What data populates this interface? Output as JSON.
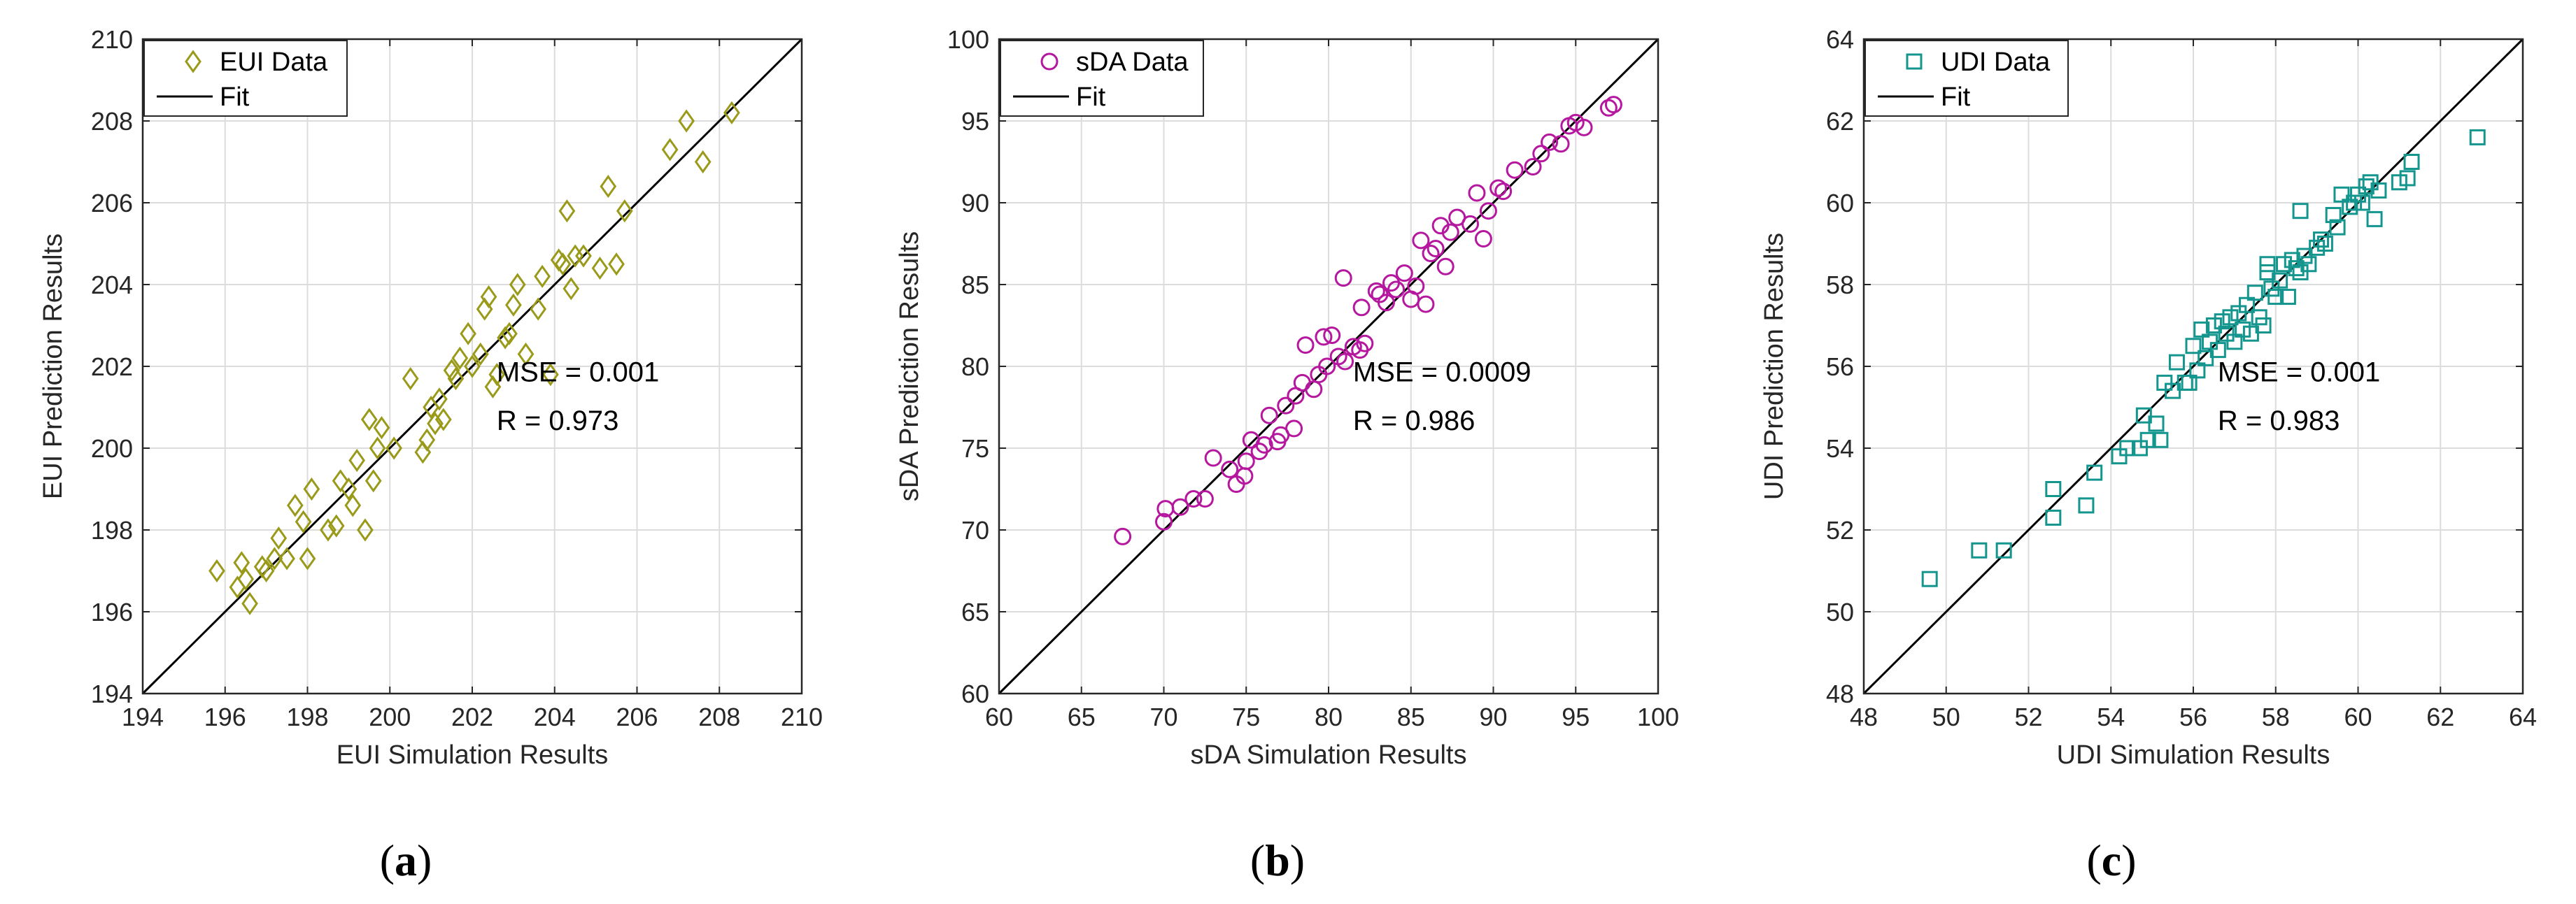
{
  "chart_data": [
    {
      "type": "scatter",
      "panel": "(a)",
      "panel_letter": "a",
      "xlabel": "EUI Simulation Results",
      "ylabel": "EUI Prediction Results",
      "xlim": [
        194,
        210
      ],
      "ylim": [
        194,
        210
      ],
      "xticks": [
        194,
        196,
        198,
        200,
        202,
        204,
        206,
        208,
        210
      ],
      "yticks": [
        194,
        196,
        198,
        200,
        202,
        204,
        206,
        208,
        210
      ],
      "grid": true,
      "marker": "diamond",
      "color": "#9a9a1a",
      "legend": {
        "data_label": "EUI Data",
        "fit_label": "Fit",
        "position": "top-left"
      },
      "annotations": {
        "mse": "MSE = 0.001",
        "r": "R = 0.973"
      },
      "fit": [
        [
          194,
          194
        ],
        [
          210,
          210
        ]
      ],
      "points": [
        [
          195.8,
          197.0
        ],
        [
          196.3,
          196.6
        ],
        [
          196.4,
          197.2
        ],
        [
          196.5,
          196.8
        ],
        [
          196.6,
          196.2
        ],
        [
          196.9,
          197.1
        ],
        [
          197.0,
          197.0
        ],
        [
          197.2,
          197.3
        ],
        [
          197.3,
          197.8
        ],
        [
          197.5,
          197.3
        ],
        [
          197.7,
          198.6
        ],
        [
          197.9,
          198.2
        ],
        [
          198.0,
          197.3
        ],
        [
          198.1,
          199.0
        ],
        [
          198.5,
          198.0
        ],
        [
          198.7,
          198.1
        ],
        [
          198.8,
          199.2
        ],
        [
          199.0,
          199.0
        ],
        [
          199.1,
          198.6
        ],
        [
          199.2,
          199.7
        ],
        [
          199.4,
          198.0
        ],
        [
          199.5,
          200.7
        ],
        [
          199.6,
          199.2
        ],
        [
          199.7,
          200.0
        ],
        [
          199.8,
          200.5
        ],
        [
          200.1,
          200.0
        ],
        [
          200.5,
          201.7
        ],
        [
          200.8,
          199.9
        ],
        [
          200.9,
          200.2
        ],
        [
          201.0,
          201.0
        ],
        [
          201.1,
          200.6
        ],
        [
          201.2,
          201.2
        ],
        [
          201.3,
          200.7
        ],
        [
          201.5,
          201.9
        ],
        [
          201.6,
          201.7
        ],
        [
          201.7,
          202.2
        ],
        [
          201.9,
          202.8
        ],
        [
          202.0,
          202.0
        ],
        [
          202.2,
          202.3
        ],
        [
          202.3,
          203.4
        ],
        [
          202.4,
          203.7
        ],
        [
          202.5,
          201.5
        ],
        [
          202.6,
          201.8
        ],
        [
          202.8,
          202.7
        ],
        [
          202.9,
          202.8
        ],
        [
          203.0,
          203.5
        ],
        [
          203.1,
          204.0
        ],
        [
          203.3,
          202.3
        ],
        [
          203.6,
          203.4
        ],
        [
          203.7,
          204.2
        ],
        [
          203.9,
          201.8
        ],
        [
          204.1,
          204.6
        ],
        [
          204.2,
          204.5
        ],
        [
          204.3,
          205.8
        ],
        [
          204.4,
          203.9
        ],
        [
          204.5,
          204.7
        ],
        [
          204.7,
          204.7
        ],
        [
          205.1,
          204.4
        ],
        [
          205.3,
          206.4
        ],
        [
          205.5,
          204.5
        ],
        [
          205.7,
          205.8
        ],
        [
          206.8,
          207.3
        ],
        [
          207.2,
          208.0
        ],
        [
          207.6,
          207.0
        ],
        [
          208.3,
          208.2
        ]
      ]
    },
    {
      "type": "scatter",
      "panel": "(b)",
      "panel_letter": "b",
      "xlabel": "sDA Simulation Results",
      "ylabel": "sDA Prediction Results",
      "xlim": [
        60,
        100
      ],
      "ylim": [
        60,
        100
      ],
      "xticks": [
        60,
        65,
        70,
        75,
        80,
        85,
        90,
        95,
        100
      ],
      "yticks": [
        60,
        65,
        70,
        75,
        80,
        85,
        90,
        95,
        100
      ],
      "grid": true,
      "marker": "circle",
      "color": "#b5179e",
      "legend": {
        "data_label": "sDA Data",
        "fit_label": "Fit",
        "position": "top-left"
      },
      "annotations": {
        "mse": "MSE = 0.0009",
        "r": "R = 0.986"
      },
      "fit": [
        [
          60,
          60
        ],
        [
          100,
          100
        ]
      ],
      "points": [
        [
          67.5,
          69.6
        ],
        [
          70.0,
          70.5
        ],
        [
          70.1,
          71.3
        ],
        [
          71.0,
          71.4
        ],
        [
          71.8,
          71.9
        ],
        [
          72.5,
          71.9
        ],
        [
          73.0,
          74.4
        ],
        [
          74.0,
          73.7
        ],
        [
          74.4,
          72.8
        ],
        [
          74.9,
          73.3
        ],
        [
          75.0,
          74.2
        ],
        [
          75.3,
          75.5
        ],
        [
          75.8,
          74.8
        ],
        [
          76.1,
          75.2
        ],
        [
          76.4,
          77.0
        ],
        [
          76.9,
          75.4
        ],
        [
          77.1,
          75.8
        ],
        [
          77.4,
          77.6
        ],
        [
          77.9,
          76.2
        ],
        [
          78.0,
          78.2
        ],
        [
          78.4,
          79.0
        ],
        [
          78.6,
          81.3
        ],
        [
          79.1,
          78.6
        ],
        [
          79.4,
          79.5
        ],
        [
          79.7,
          81.8
        ],
        [
          79.9,
          80.0
        ],
        [
          80.2,
          81.9
        ],
        [
          80.6,
          80.6
        ],
        [
          80.9,
          85.4
        ],
        [
          81.0,
          80.3
        ],
        [
          81.5,
          81.2
        ],
        [
          81.9,
          81.0
        ],
        [
          82.0,
          83.6
        ],
        [
          82.2,
          81.4
        ],
        [
          82.9,
          84.6
        ],
        [
          83.1,
          84.4
        ],
        [
          83.5,
          83.9
        ],
        [
          83.8,
          85.1
        ],
        [
          84.1,
          84.7
        ],
        [
          84.6,
          85.7
        ],
        [
          85.0,
          84.1
        ],
        [
          85.3,
          84.9
        ],
        [
          85.6,
          87.7
        ],
        [
          85.9,
          83.8
        ],
        [
          86.2,
          86.9
        ],
        [
          86.5,
          87.2
        ],
        [
          86.8,
          88.6
        ],
        [
          87.1,
          86.1
        ],
        [
          87.4,
          88.2
        ],
        [
          87.8,
          89.1
        ],
        [
          88.6,
          88.7
        ],
        [
          89.0,
          90.6
        ],
        [
          89.4,
          87.8
        ],
        [
          89.7,
          89.5
        ],
        [
          90.3,
          90.9
        ],
        [
          90.6,
          90.7
        ],
        [
          91.3,
          92.0
        ],
        [
          92.4,
          92.2
        ],
        [
          92.9,
          93.0
        ],
        [
          93.4,
          93.7
        ],
        [
          94.1,
          93.6
        ],
        [
          94.6,
          94.7
        ],
        [
          95.0,
          94.9
        ],
        [
          95.5,
          94.6
        ],
        [
          97.0,
          95.8
        ],
        [
          97.3,
          96.0
        ]
      ]
    },
    {
      "type": "scatter",
      "panel": "(c)",
      "panel_letter": "c",
      "xlabel": "UDI Simulation Results",
      "ylabel": "UDI Prediction Results",
      "xlim": [
        48,
        64
      ],
      "ylim": [
        48,
        64
      ],
      "xticks": [
        48,
        50,
        52,
        54,
        56,
        58,
        60,
        62,
        64
      ],
      "yticks": [
        48,
        50,
        52,
        54,
        56,
        58,
        60,
        62,
        64
      ],
      "grid": true,
      "marker": "square",
      "color": "#14968f",
      "legend": {
        "data_label": "UDI Data",
        "fit_label": "Fit",
        "position": "top-left"
      },
      "annotations": {
        "mse": "MSE = 0.001",
        "r": "R = 0.983"
      },
      "fit": [
        [
          48,
          48
        ],
        [
          64,
          64
        ]
      ],
      "points": [
        [
          49.6,
          50.8
        ],
        [
          50.8,
          51.5
        ],
        [
          51.4,
          51.5
        ],
        [
          52.6,
          52.3
        ],
        [
          52.6,
          53.0
        ],
        [
          53.4,
          52.6
        ],
        [
          53.6,
          53.4
        ],
        [
          54.2,
          53.8
        ],
        [
          54.4,
          54.0
        ],
        [
          54.7,
          54.0
        ],
        [
          54.8,
          54.8
        ],
        [
          54.9,
          54.2
        ],
        [
          55.1,
          54.6
        ],
        [
          55.2,
          54.2
        ],
        [
          55.3,
          55.6
        ],
        [
          55.5,
          55.4
        ],
        [
          55.6,
          56.1
        ],
        [
          55.8,
          55.6
        ],
        [
          55.9,
          55.6
        ],
        [
          56.0,
          56.5
        ],
        [
          56.1,
          55.9
        ],
        [
          56.2,
          56.9
        ],
        [
          56.3,
          56.2
        ],
        [
          56.4,
          56.6
        ],
        [
          56.5,
          57.0
        ],
        [
          56.6,
          56.4
        ],
        [
          56.7,
          57.1
        ],
        [
          56.8,
          56.8
        ],
        [
          56.9,
          57.2
        ],
        [
          57.0,
          56.6
        ],
        [
          57.1,
          57.3
        ],
        [
          57.2,
          56.9
        ],
        [
          57.3,
          57.5
        ],
        [
          57.4,
          56.8
        ],
        [
          57.5,
          57.8
        ],
        [
          57.6,
          57.2
        ],
        [
          57.7,
          57.0
        ],
        [
          57.8,
          58.3
        ],
        [
          57.8,
          58.5
        ],
        [
          57.9,
          57.9
        ],
        [
          58.0,
          57.7
        ],
        [
          58.1,
          58.1
        ],
        [
          58.2,
          58.5
        ],
        [
          58.3,
          57.7
        ],
        [
          58.4,
          58.6
        ],
        [
          58.5,
          58.4
        ],
        [
          58.6,
          58.3
        ],
        [
          58.6,
          59.8
        ],
        [
          58.7,
          58.7
        ],
        [
          58.8,
          58.5
        ],
        [
          59.0,
          58.9
        ],
        [
          59.1,
          59.1
        ],
        [
          59.2,
          59.0
        ],
        [
          59.4,
          59.7
        ],
        [
          59.5,
          59.4
        ],
        [
          59.6,
          60.2
        ],
        [
          59.8,
          59.9
        ],
        [
          59.9,
          60.0
        ],
        [
          60.0,
          60.2
        ],
        [
          60.1,
          60.0
        ],
        [
          60.2,
          60.4
        ],
        [
          60.3,
          60.5
        ],
        [
          60.4,
          59.6
        ],
        [
          60.5,
          60.3
        ],
        [
          61.0,
          60.5
        ],
        [
          61.2,
          60.6
        ],
        [
          61.3,
          61.0
        ],
        [
          62.9,
          61.6
        ]
      ]
    }
  ]
}
